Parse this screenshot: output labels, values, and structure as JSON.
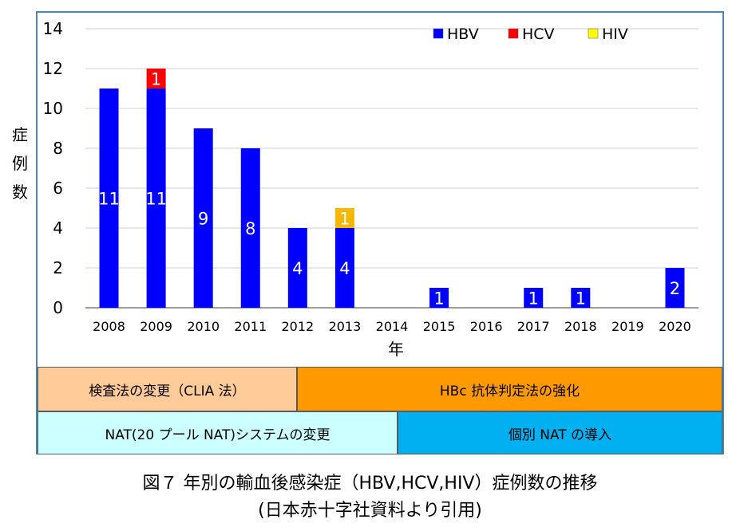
{
  "chart_data": {
    "type": "bar",
    "stacked": true,
    "categories": [
      "2008",
      "2009",
      "2010",
      "2011",
      "2012",
      "2013",
      "2014",
      "2015",
      "2016",
      "2017",
      "2018",
      "2019",
      "2020"
    ],
    "series": [
      {
        "name": "HBV",
        "color": "#0000ff",
        "values": [
          11,
          11,
          9,
          8,
          4,
          4,
          0,
          1,
          0,
          1,
          1,
          0,
          2
        ]
      },
      {
        "name": "HCV",
        "color": "#ff0000",
        "values": [
          0,
          1,
          0,
          0,
          0,
          0,
          0,
          0,
          0,
          0,
          0,
          0,
          0
        ]
      },
      {
        "name": "HIV",
        "color": "#ffff00",
        "values": [
          0,
          0,
          0,
          0,
          0,
          1,
          0,
          0,
          0,
          0,
          0,
          0,
          0
        ]
      }
    ],
    "hiv_bar_color": "#f5b800",
    "ylabel": "症例数",
    "xlabel": "年",
    "ylim": [
      0,
      14
    ],
    "yticks": [
      0,
      2,
      4,
      6,
      8,
      10,
      12,
      14
    ],
    "grid": true,
    "legend_position": "top-right"
  },
  "bands": [
    {
      "label": "検査法の変更（CLIA 法）",
      "color": "#ffcc99"
    },
    {
      "label": "HBc 抗体判定法の強化",
      "color": "#ff9900"
    },
    {
      "label": "NAT(20 プール NAT)システムの変更",
      "color": "#ccffff"
    },
    {
      "label": "個別 NAT の導入",
      "color": "#00b0f0"
    }
  ],
  "caption": {
    "line1": "図７ 年別の輸血後感染症（HBV,HCV,HIV）症例数の推移",
    "line2": "(日本赤十字社資料より引用)"
  }
}
